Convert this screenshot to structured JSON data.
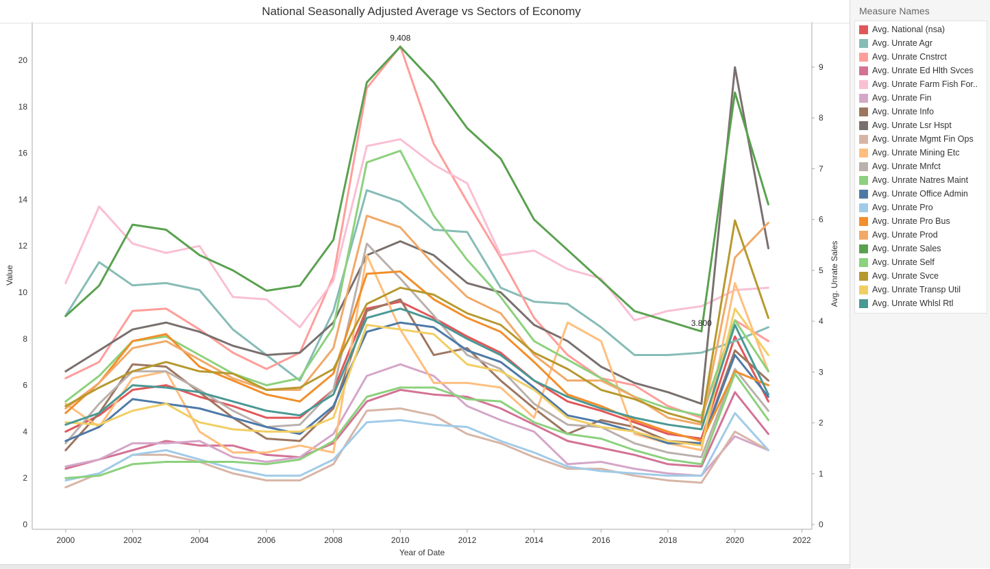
{
  "chart_data": {
    "type": "line",
    "title": "National Seasonally Adjusted Average vs Sectors of Economy",
    "xlabel": "Year of Date",
    "ylabel": "Value",
    "y2label": "Avg. Unrate Sales",
    "xlim": [
      1999,
      2022.3
    ],
    "ylim": [
      0,
      21
    ],
    "y2lim": [
      0,
      9.5
    ],
    "xticks": [
      "2000",
      "2002",
      "2004",
      "2006",
      "2008",
      "2010",
      "2012",
      "2014",
      "2016",
      "2018",
      "2020",
      "2022"
    ],
    "yticks": [
      "0",
      "2",
      "4",
      "6",
      "8",
      "10",
      "12",
      "14",
      "16",
      "18",
      "20"
    ],
    "y2ticks": [
      "0",
      "1",
      "2",
      "3",
      "4",
      "5",
      "6",
      "7",
      "8",
      "9"
    ],
    "x": [
      2000,
      2001,
      2002,
      2003,
      2004,
      2005,
      2006,
      2007,
      2008,
      2009,
      2010,
      2011,
      2012,
      2013,
      2014,
      2015,
      2016,
      2017,
      2018,
      2019,
      2020,
      2021
    ],
    "series": [
      {
        "name": "Avg. National (nsa)",
        "color": "#e15759",
        "axis": "left",
        "values": [
          4.0,
          4.7,
          5.8,
          6.0,
          5.5,
          5.1,
          4.6,
          4.6,
          5.8,
          9.3,
          9.6,
          8.9,
          8.1,
          7.4,
          6.2,
          5.3,
          4.9,
          4.4,
          3.9,
          3.7,
          8.1,
          5.3
        ]
      },
      {
        "name": "Avg. Unrate Agr",
        "color": "#86bcb6",
        "axis": "left",
        "values": [
          9.0,
          11.3,
          10.3,
          10.4,
          10.1,
          8.4,
          7.3,
          6.2,
          9.2,
          14.4,
          13.9,
          12.7,
          12.6,
          10.2,
          9.6,
          9.5,
          8.5,
          7.3,
          7.3,
          7.4,
          7.9,
          8.5
        ]
      },
      {
        "name": "Avg. Unrate Cnstrct",
        "color": "#ff9d9a",
        "axis": "left",
        "values": [
          6.3,
          7.0,
          9.2,
          9.3,
          8.4,
          7.4,
          6.7,
          7.4,
          10.7,
          18.8,
          20.6,
          16.4,
          13.9,
          11.5,
          8.9,
          7.3,
          6.3,
          6.0,
          5.1,
          4.6,
          8.8,
          7.9
        ]
      },
      {
        "name": "Avg. Unrate Ed Hlth Svces",
        "color": "#d37295",
        "axis": "left",
        "values": [
          2.4,
          2.8,
          3.2,
          3.6,
          3.4,
          3.4,
          3.0,
          2.9,
          3.5,
          5.3,
          5.8,
          5.6,
          5.5,
          5.0,
          4.3,
          3.6,
          3.3,
          3.0,
          2.6,
          2.5,
          5.7,
          3.9
        ]
      },
      {
        "name": "Avg. Unrate Farm Fish For..",
        "color": "#fabfd2",
        "axis": "left",
        "values": [
          10.4,
          13.7,
          12.1,
          11.7,
          12.0,
          9.8,
          9.7,
          8.5,
          10.5,
          16.3,
          16.6,
          15.5,
          14.7,
          11.6,
          11.8,
          11.0,
          10.6,
          8.8,
          9.2,
          9.4,
          10.1,
          10.2
        ]
      },
      {
        "name": "Avg. Unrate Fin",
        "color": "#d4a6c8",
        "axis": "left",
        "values": [
          2.5,
          2.8,
          3.5,
          3.5,
          3.6,
          2.9,
          2.7,
          2.9,
          3.9,
          6.4,
          6.9,
          6.4,
          5.1,
          4.5,
          4.0,
          2.6,
          2.7,
          2.4,
          2.2,
          2.1,
          3.8,
          3.2
        ]
      },
      {
        "name": "Avg. Unrate Info",
        "color": "#9d7660",
        "axis": "left",
        "values": [
          3.2,
          4.8,
          6.9,
          6.8,
          5.7,
          4.6,
          3.7,
          3.6,
          5.0,
          9.2,
          9.7,
          7.3,
          7.6,
          6.2,
          5.0,
          3.9,
          4.5,
          4.2,
          3.6,
          3.5,
          7.5,
          6.2
        ]
      },
      {
        "name": "Avg. Unrate Lsr Hspt",
        "color": "#79706e",
        "axis": "left",
        "values": [
          6.6,
          7.5,
          8.4,
          8.7,
          8.3,
          7.7,
          7.3,
          7.4,
          8.7,
          11.6,
          12.2,
          11.6,
          10.4,
          10.0,
          8.6,
          7.9,
          6.8,
          6.1,
          5.7,
          5.2,
          19.7,
          11.9
        ]
      },
      {
        "name": "Avg. Unrate Mgmt Fin Ops",
        "color": "#d7b5a6",
        "axis": "left",
        "values": [
          1.6,
          2.2,
          3.0,
          3.0,
          2.7,
          2.2,
          1.9,
          1.9,
          2.6,
          4.9,
          5.0,
          4.7,
          3.9,
          3.5,
          2.9,
          2.4,
          2.4,
          2.1,
          1.9,
          1.8,
          4.0,
          3.2
        ]
      },
      {
        "name": "Avg. Unrate Mining Etc",
        "color": "#ffbe7d",
        "axis": "left",
        "values": [
          5.2,
          4.2,
          6.3,
          6.6,
          4.0,
          3.1,
          3.1,
          3.4,
          3.1,
          11.6,
          8.4,
          6.1,
          6.1,
          5.9,
          4.6,
          8.7,
          7.9,
          3.9,
          3.5,
          3.2,
          10.4,
          6.6
        ]
      },
      {
        "name": "Avg. Unrate Mnfct",
        "color": "#bab0ac",
        "axis": "left",
        "values": [
          3.5,
          5.2,
          6.6,
          6.6,
          5.8,
          4.9,
          4.2,
          4.3,
          5.8,
          12.1,
          10.6,
          9.0,
          7.3,
          6.7,
          5.2,
          4.3,
          4.2,
          3.5,
          3.1,
          2.9,
          6.7,
          4.9
        ]
      },
      {
        "name": "Avg. Unrate Natres Maint",
        "color": "#8cd17d",
        "axis": "left",
        "values": [
          5.3,
          6.4,
          7.9,
          8.1,
          7.3,
          6.5,
          6.0,
          6.3,
          8.5,
          15.6,
          16.1,
          13.3,
          11.4,
          9.8,
          7.9,
          7.1,
          6.3,
          5.5,
          5.0,
          4.7,
          8.8,
          6.6
        ]
      },
      {
        "name": "Avg. Unrate Office Admin",
        "color": "#4e79a7",
        "axis": "left",
        "values": [
          3.6,
          4.2,
          5.4,
          5.2,
          5.0,
          4.6,
          4.2,
          3.9,
          5.1,
          8.3,
          8.7,
          8.5,
          7.5,
          7.0,
          5.9,
          4.7,
          4.4,
          4.0,
          3.5,
          3.5,
          7.3,
          5.5
        ]
      },
      {
        "name": "Avg. Unrate Pro",
        "color": "#a0cbe8",
        "axis": "left",
        "values": [
          1.9,
          2.2,
          3.0,
          3.2,
          2.8,
          2.4,
          2.1,
          2.1,
          2.8,
          4.4,
          4.5,
          4.3,
          4.2,
          3.6,
          3.1,
          2.5,
          2.3,
          2.2,
          2.1,
          2.1,
          4.8,
          3.2
        ]
      },
      {
        "name": "Avg. Unrate Pro Bus",
        "color": "#f28e2b",
        "axis": "left",
        "values": [
          4.8,
          6.1,
          7.9,
          8.2,
          6.8,
          6.2,
          5.6,
          5.3,
          6.5,
          10.8,
          10.9,
          9.7,
          8.9,
          8.3,
          7.0,
          5.6,
          5.1,
          4.5,
          4.0,
          3.6,
          6.6,
          6.0
        ]
      },
      {
        "name": "Avg. Unrate Prod",
        "color": "#f1a968",
        "axis": "left",
        "values": [
          5.0,
          6.1,
          7.6,
          7.9,
          7.1,
          6.3,
          5.8,
          5.8,
          7.6,
          13.3,
          12.8,
          11.2,
          9.8,
          9.1,
          7.3,
          6.2,
          6.2,
          5.5,
          4.6,
          4.3,
          11.5,
          13.0
        ]
      },
      {
        "name": "Avg. Unrate Sales",
        "color": "#59a14f",
        "axis": "right",
        "values": [
          4.1,
          4.7,
          5.9,
          5.8,
          5.3,
          5.0,
          4.6,
          4.7,
          5.6,
          8.7,
          9.4,
          8.7,
          7.8,
          7.2,
          6.0,
          5.4,
          4.8,
          4.2,
          4.0,
          3.8,
          8.5,
          6.3
        ]
      },
      {
        "name": "Avg. Unrate Self",
        "color": "#8cd17d",
        "axis": "left",
        "values": [
          2.0,
          2.1,
          2.6,
          2.7,
          2.7,
          2.7,
          2.6,
          2.8,
          3.6,
          5.5,
          5.9,
          5.9,
          5.4,
          5.3,
          4.4,
          3.9,
          3.7,
          3.2,
          2.8,
          2.6,
          6.5,
          4.5
        ]
      },
      {
        "name": "Avg. Unrate Svce",
        "color": "#b6992d",
        "axis": "left",
        "values": [
          5.1,
          5.9,
          6.6,
          7.0,
          6.6,
          6.5,
          5.8,
          5.9,
          6.7,
          9.5,
          10.2,
          9.9,
          9.1,
          8.6,
          7.4,
          6.7,
          5.8,
          5.4,
          4.8,
          4.4,
          13.1,
          8.9
        ]
      },
      {
        "name": "Avg. Unrate Transp Util",
        "color": "#f1ce63",
        "axis": "left",
        "values": [
          4.4,
          4.3,
          4.9,
          5.2,
          4.4,
          4.1,
          4.0,
          4.0,
          4.6,
          8.6,
          8.4,
          8.2,
          6.9,
          6.6,
          5.8,
          4.6,
          4.2,
          4.0,
          3.6,
          3.4,
          9.3,
          7.3
        ]
      },
      {
        "name": "Avg. Unrate Whlsl Rtl",
        "color": "#499894",
        "axis": "left",
        "values": [
          4.3,
          4.8,
          6.0,
          5.9,
          5.7,
          5.3,
          4.9,
          4.7,
          5.6,
          8.9,
          9.3,
          8.8,
          8.0,
          7.3,
          6.2,
          5.5,
          5.0,
          4.6,
          4.3,
          4.1,
          8.6,
          5.6
        ]
      }
    ],
    "annotations": [
      {
        "text": "9.408",
        "x": 2010,
        "y": 9.408,
        "axis": "right",
        "position": "above"
      },
      {
        "text": "3.800",
        "x": 2019,
        "y": 3.8,
        "axis": "right",
        "position": "above"
      }
    ],
    "grid": false,
    "legend": "right"
  },
  "legend": {
    "title": "Measure Names"
  }
}
